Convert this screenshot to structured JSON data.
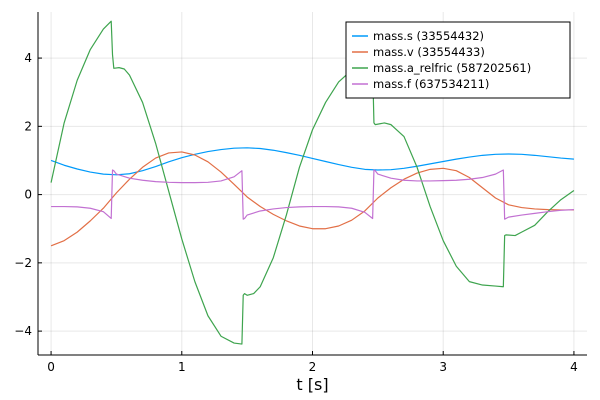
{
  "chart_data": {
    "type": "line",
    "title": "",
    "xlabel": "t [s]",
    "ylabel": "",
    "xlim": [
      -0.1,
      4.1
    ],
    "ylim": [
      -4.7,
      5.35
    ],
    "xticks": [
      0,
      1,
      2,
      3,
      4
    ],
    "xtick_labels": [
      "0",
      "1",
      "2",
      "3",
      "4"
    ],
    "yticks": [
      -4,
      -2,
      0,
      2,
      4
    ],
    "ytick_labels": [
      "−4",
      "−2",
      "0",
      "2",
      "4"
    ],
    "grid": true,
    "legend_position": "top-right",
    "series": [
      {
        "name": "mass.s (33554432)",
        "color": "#009AFA",
        "x": [
          0,
          0.1,
          0.2,
          0.3,
          0.4,
          0.5,
          0.6,
          0.7,
          0.8,
          0.9,
          1.0,
          1.1,
          1.2,
          1.3,
          1.4,
          1.5,
          1.6,
          1.7,
          1.8,
          1.9,
          2.0,
          2.1,
          2.2,
          2.3,
          2.4,
          2.5,
          2.6,
          2.7,
          2.8,
          2.9,
          3.0,
          3.1,
          3.2,
          3.3,
          3.4,
          3.5,
          3.6,
          3.7,
          3.8,
          3.9,
          4.0
        ],
        "y": [
          1.0,
          0.86,
          0.75,
          0.66,
          0.6,
          0.58,
          0.61,
          0.7,
          0.82,
          0.96,
          1.08,
          1.18,
          1.26,
          1.32,
          1.36,
          1.37,
          1.35,
          1.3,
          1.23,
          1.15,
          1.06,
          0.97,
          0.88,
          0.8,
          0.74,
          0.72,
          0.73,
          0.77,
          0.83,
          0.9,
          0.97,
          1.04,
          1.1,
          1.15,
          1.18,
          1.19,
          1.18,
          1.15,
          1.11,
          1.07,
          1.04
        ]
      },
      {
        "name": "mass.v (33554433)",
        "color": "#E26F46",
        "x": [
          0,
          0.1,
          0.2,
          0.3,
          0.4,
          0.5,
          0.6,
          0.7,
          0.8,
          0.9,
          1.0,
          1.1,
          1.2,
          1.3,
          1.4,
          1.5,
          1.6,
          1.7,
          1.8,
          1.9,
          2.0,
          2.1,
          2.2,
          2.3,
          2.4,
          2.5,
          2.6,
          2.7,
          2.8,
          2.9,
          3.0,
          3.1,
          3.2,
          3.3,
          3.4,
          3.5,
          3.6,
          3.7,
          3.8,
          3.9,
          4.0
        ],
        "y": [
          -1.5,
          -1.35,
          -1.1,
          -0.77,
          -0.4,
          0.05,
          0.45,
          0.8,
          1.07,
          1.22,
          1.25,
          1.16,
          0.96,
          0.66,
          0.3,
          -0.07,
          -0.35,
          -0.58,
          -0.77,
          -0.92,
          -1.0,
          -1.0,
          -0.92,
          -0.75,
          -0.48,
          -0.1,
          0.2,
          0.45,
          0.63,
          0.74,
          0.77,
          0.7,
          0.5,
          0.2,
          -0.1,
          -0.3,
          -0.38,
          -0.42,
          -0.44,
          -0.45,
          -0.45
        ]
      },
      {
        "name": "mass.a_relfric (587202561)",
        "color": "#3EA44E",
        "x": [
          0,
          0.1,
          0.2,
          0.3,
          0.4,
          0.46,
          0.47,
          0.48,
          0.52,
          0.56,
          0.6,
          0.7,
          0.8,
          0.9,
          1.0,
          1.1,
          1.2,
          1.3,
          1.4,
          1.46,
          1.47,
          1.48,
          1.5,
          1.55,
          1.6,
          1.7,
          1.8,
          1.9,
          2.0,
          2.1,
          2.2,
          2.3,
          2.4,
          2.46,
          2.47,
          2.48,
          2.55,
          2.6,
          2.7,
          2.8,
          2.9,
          3.0,
          3.1,
          3.2,
          3.3,
          3.4,
          3.46,
          3.47,
          3.48,
          3.55,
          3.6,
          3.7,
          3.8,
          3.9,
          4.0
        ],
        "y": [
          0.35,
          2.1,
          3.35,
          4.25,
          4.85,
          5.08,
          4.1,
          3.7,
          3.72,
          3.68,
          3.5,
          2.7,
          1.5,
          0.1,
          -1.3,
          -2.55,
          -3.55,
          -4.15,
          -4.35,
          -4.38,
          -2.95,
          -2.9,
          -2.95,
          -2.9,
          -2.7,
          -1.85,
          -0.6,
          0.8,
          1.9,
          2.7,
          3.3,
          3.65,
          3.72,
          3.75,
          2.1,
          2.05,
          2.1,
          2.05,
          1.7,
          0.8,
          -0.35,
          -1.35,
          -2.1,
          -2.55,
          -2.65,
          -2.68,
          -2.7,
          -1.2,
          -1.18,
          -1.2,
          -1.1,
          -0.9,
          -0.5,
          -0.15,
          0.12
        ]
      },
      {
        "name": "mass.f (637534211)",
        "color": "#C271D2",
        "x": [
          0,
          0.1,
          0.2,
          0.3,
          0.4,
          0.46,
          0.47,
          0.48,
          0.5,
          0.6,
          0.7,
          0.8,
          0.9,
          1.0,
          1.1,
          1.2,
          1.3,
          1.4,
          1.46,
          1.47,
          1.48,
          1.5,
          1.6,
          1.7,
          1.8,
          1.9,
          2.0,
          2.1,
          2.2,
          2.3,
          2.4,
          2.46,
          2.47,
          2.48,
          2.5,
          2.6,
          2.7,
          2.8,
          2.9,
          3.0,
          3.1,
          3.2,
          3.3,
          3.4,
          3.46,
          3.47,
          3.48,
          3.5,
          3.6,
          3.7,
          3.8,
          3.9,
          4.0
        ],
        "y": [
          -0.35,
          -0.35,
          -0.36,
          -0.4,
          -0.5,
          -0.7,
          0.72,
          0.7,
          0.6,
          0.48,
          0.42,
          0.38,
          0.36,
          0.35,
          0.35,
          0.36,
          0.4,
          0.52,
          0.7,
          -0.72,
          -0.7,
          -0.6,
          -0.48,
          -0.42,
          -0.38,
          -0.36,
          -0.35,
          -0.35,
          -0.36,
          -0.4,
          -0.52,
          -0.7,
          0.72,
          0.7,
          0.6,
          0.48,
          0.42,
          0.4,
          0.4,
          0.41,
          0.42,
          0.45,
          0.5,
          0.6,
          0.72,
          -0.72,
          -0.7,
          -0.66,
          -0.6,
          -0.55,
          -0.5,
          -0.46,
          -0.44
        ]
      }
    ]
  }
}
